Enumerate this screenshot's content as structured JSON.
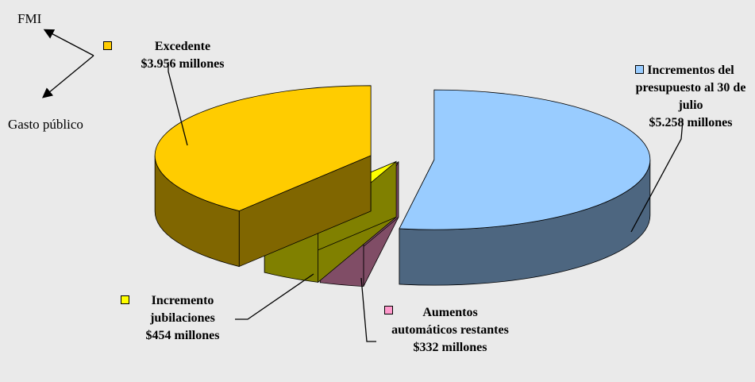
{
  "chart_data": {
    "type": "pie",
    "categories": [
      "Incrementos del presupuesto al 30 de julio",
      "Aumentos automáticos restantes",
      "Incremento jubilaciones",
      "Excedente"
    ],
    "values": [
      5258,
      332,
      454,
      3956
    ],
    "value_labels": [
      "$5.258 millones",
      "$332 millones",
      "$454 millones",
      "$3.956 millones"
    ],
    "colors": [
      "#99ccff",
      "#ff99cc",
      "#ffff00",
      "#ffcc00"
    ],
    "annotations": [
      "FMI",
      "Gasto público"
    ]
  }
}
